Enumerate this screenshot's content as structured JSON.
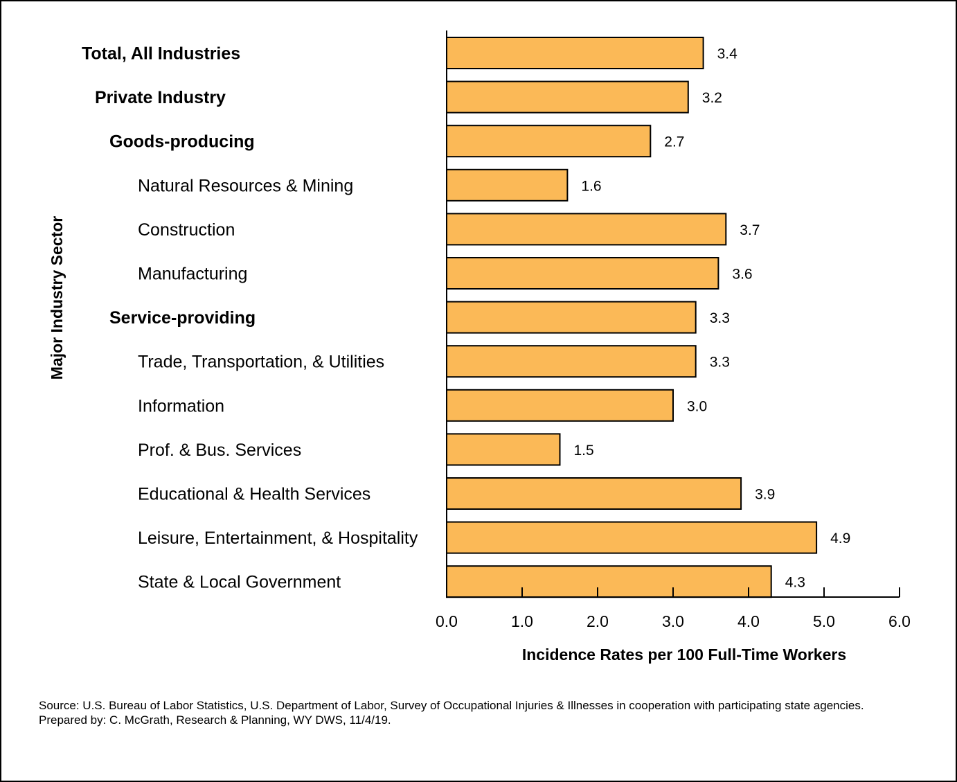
{
  "chart_data": {
    "type": "bar",
    "orientation": "horizontal",
    "categories": [
      "Total, All Industries",
      "Private Industry",
      "Goods-producing",
      "Natural Resources & Mining",
      "Construction",
      "Manufacturing",
      "Service-providing",
      "Trade, Transportation, & Utilities",
      "Information",
      "Prof. & Bus. Services",
      "Educational & Health Services",
      "Leisure, Entertainment, & Hospitality",
      "State & Local Government"
    ],
    "category_levels": [
      0,
      1,
      2,
      3,
      3,
      3,
      2,
      3,
      3,
      3,
      3,
      3,
      3
    ],
    "bold_categories": [
      true,
      true,
      true,
      false,
      false,
      false,
      true,
      false,
      false,
      false,
      false,
      false,
      false
    ],
    "values": [
      3.4,
      3.2,
      2.7,
      1.6,
      3.7,
      3.6,
      3.3,
      3.3,
      3.0,
      1.5,
      3.9,
      4.9,
      4.3
    ],
    "value_labels": [
      "3.4",
      "3.2",
      "2.7",
      "1.6",
      "3.7",
      "3.6",
      "3.3",
      "3.3",
      "3.0",
      "1.5",
      "3.9",
      "4.9",
      "4.3"
    ],
    "xlabel": "Incidence Rates per 100 Full-Time Workers",
    "ylabel": "Major Industry Sector",
    "xlim": [
      0,
      6
    ],
    "xticks": [
      0,
      1,
      2,
      3,
      4,
      5,
      6
    ],
    "xtick_labels": [
      "0.0",
      "1.0",
      "2.0",
      "3.0",
      "4.0",
      "5.0",
      "6.0"
    ],
    "grid": false,
    "bar_color": "#FBB957",
    "bar_edge_color": "#000000"
  },
  "footer": {
    "source": "Source: U.S. Bureau of Labor Statistics, U.S. Department of Labor, Survey of Occupational Injuries & Illnesses in cooperation with participating state agencies.",
    "prepared_by": "Prepared by: C. McGrath, Research & Planning, WY DWS, 11/4/19."
  }
}
